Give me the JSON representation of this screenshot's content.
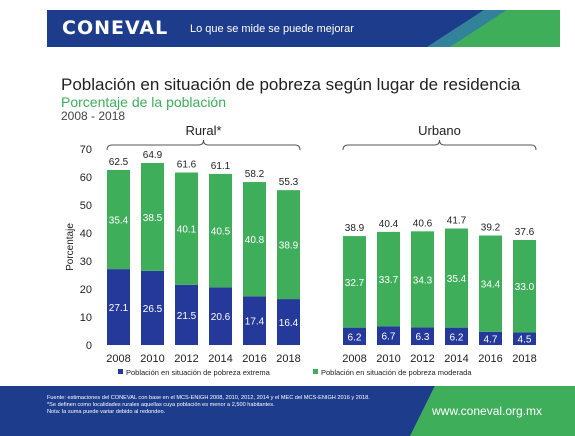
{
  "header": {
    "logo": "CONEVAL",
    "tagline": "Lo que se mide se puede mejorar"
  },
  "title": "Población en situación de pobreza según lugar de residencia",
  "subtitle": "Porcentaje de la población",
  "period": "2008 - 2018",
  "colors": {
    "extrema": "#24399a",
    "moderada": "#3fae5a",
    "header": "#1d3c8c"
  },
  "chart_data": {
    "type": "bar",
    "stacked": true,
    "ylabel": "Porcentaje",
    "ylim": [
      0,
      70
    ],
    "yticks": [
      0,
      10,
      20,
      30,
      40,
      50,
      60,
      70
    ],
    "grid": false,
    "legend_position": "bottom",
    "groups": [
      {
        "name": "Rural*",
        "categories": [
          "2008",
          "2010",
          "2012",
          "2014",
          "2016",
          "2018"
        ],
        "series": [
          {
            "name": "Población en situación de pobreza extrema",
            "values": [
              27.1,
              26.5,
              21.5,
              20.6,
              17.4,
              16.4
            ]
          },
          {
            "name": "Población en situación de pobreza moderada",
            "values": [
              35.4,
              38.5,
              40.1,
              40.5,
              40.8,
              38.9
            ]
          }
        ],
        "totals": [
          62.5,
          64.9,
          61.6,
          61.1,
          58.2,
          55.3
        ]
      },
      {
        "name": "Urbano",
        "categories": [
          "2008",
          "2010",
          "2012",
          "2014",
          "2016",
          "2018"
        ],
        "series": [
          {
            "name": "Población en situación de pobreza extrema",
            "values": [
              6.2,
              6.7,
              6.3,
              6.2,
              4.7,
              4.5
            ]
          },
          {
            "name": "Población en situación de pobreza moderada",
            "values": [
              32.7,
              33.7,
              34.3,
              35.4,
              34.4,
              33.0
            ]
          }
        ],
        "totals": [
          38.9,
          40.4,
          40.6,
          41.7,
          39.2,
          37.6
        ]
      }
    ],
    "legend": [
      "Población en situación de pobreza extrema",
      "Población en situación de pobreza moderada"
    ]
  },
  "footer": {
    "notes": [
      "Fuente: estimaciones del CONEVAL con base en el MCS-ENIGH 2008, 2010, 2012, 2014 y el MEC del MCS-ENIGH 2016 y 2018.",
      "*Se definen como localidades rurales aquellas cuya población es menor a 2,500 habitantes.",
      "Nota: la suma puede variar debido al redondeo."
    ],
    "url": "www.coneval.org.mx"
  }
}
